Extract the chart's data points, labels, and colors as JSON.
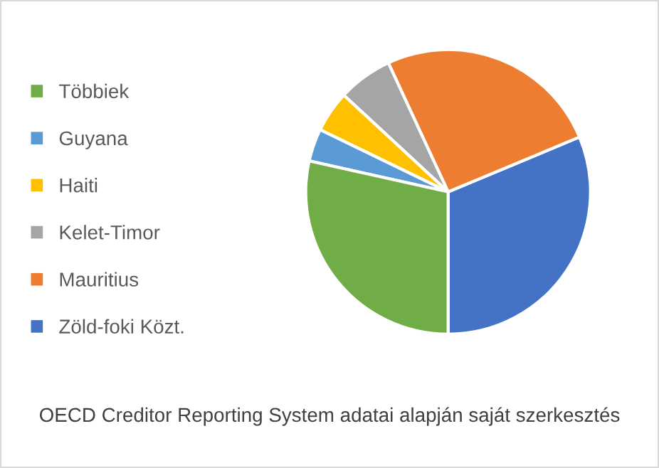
{
  "chart_data": {
    "type": "pie",
    "categories": [
      "Zöld-foki Közt.",
      "Mauritius",
      "Kelet-Timor",
      "Haiti",
      "Guyana",
      "Többiek"
    ],
    "values": [
      31.3,
      25.6,
      6.2,
      4.7,
      3.7,
      28.5
    ],
    "colors": [
      "#4472c4",
      "#ed7d31",
      "#a5a5a5",
      "#ffc000",
      "#5b9bd5",
      "#70ad47"
    ],
    "legend": "left",
    "annotations": [
      "OECD Creditor Reporting System adatai alapján saját szerkesztés"
    ]
  }
}
